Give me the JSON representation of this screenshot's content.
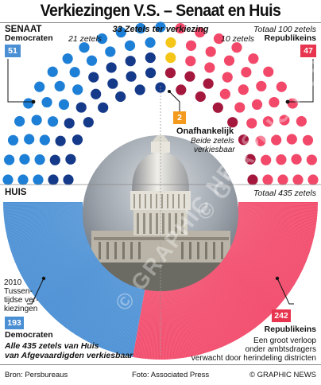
{
  "title": "Verkiezingen V.S. – Senaat en Huis",
  "colors": {
    "dem": "#1e7fd6",
    "dem_box": "#4a8fd4",
    "dem_dark": "#153a8a",
    "rep": "#f2496a",
    "rep_box": "#e8354f",
    "rep_dark": "#a5183d",
    "ind": "#f5c518",
    "ind_box": "#f39a1f"
  },
  "senate": {
    "heading": "SENAAT",
    "up_for_election": "33 Zetels ter verkiezing",
    "total": "Totaal 100 zetels",
    "dem_label": "Democraten",
    "dem_seats": "51",
    "dem_up": "21 zetels",
    "rep_label": "Republikeins",
    "rep_seats": "47",
    "rep_up": "10 zetels",
    "ind_seats": "2",
    "ind_label": "Onafhankelijk",
    "ind_note_1": "Beide zetels",
    "ind_note_2": "verkiesbaar"
  },
  "house": {
    "heading": "HUIS",
    "total": "Totaal 435 zetels",
    "dem_note": [
      "2010",
      "Tussen-",
      "tijdse ver-",
      "kiezingen"
    ],
    "dem_seats": "193",
    "dem_label": "Democraten",
    "rep_seats": "242",
    "rep_label": "Republikeins",
    "rep_note": [
      "Een groot verloop",
      "onder ambtsdragers",
      "verwacht door herindeling districten"
    ],
    "footnote_1": "Alle 435 zetels van Huis",
    "footnote_2": "van Afgevaardigden verkiesbaar"
  },
  "credits": {
    "source": "Bron: Persbureaus",
    "photo": "Foto: Associated Press",
    "copyright": "© GRAPHIC NEWS"
  },
  "watermark": "© GRAPHIC NEWS",
  "chart_data": [
    {
      "type": "parliament",
      "title": "SENAAT",
      "total": 100,
      "series": [
        {
          "name": "Democraten",
          "value": 51,
          "up_for_election": 21
        },
        {
          "name": "Onafhankelijk",
          "value": 2,
          "up_for_election": 2
        },
        {
          "name": "Republikeins",
          "value": 47,
          "up_for_election": 10
        }
      ]
    },
    {
      "type": "semicircle",
      "title": "HUIS",
      "total": 435,
      "series": [
        {
          "name": "Democraten",
          "value": 193
        },
        {
          "name": "Republikeins",
          "value": 242
        }
      ]
    }
  ]
}
